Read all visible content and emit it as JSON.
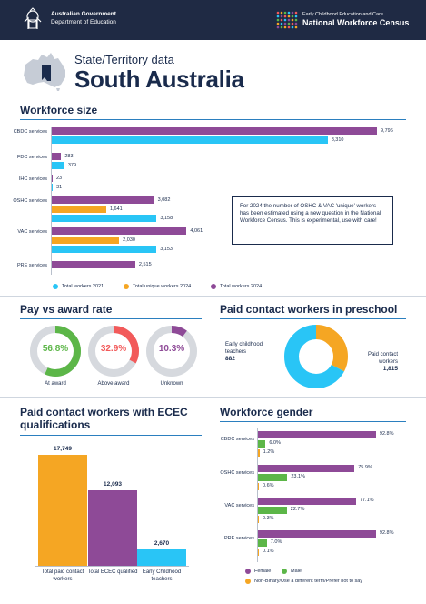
{
  "header": {
    "gov_line1": "Australian Government",
    "gov_line2": "Department of Education",
    "census_line1": "Early Childhood Education and Care",
    "census_line2": "National Workforce Census"
  },
  "page": {
    "subtitle": "State/Territory data",
    "title": "South Australia"
  },
  "workforce_size": {
    "title": "Workforce size",
    "note": "For 2024 the number of OSHC & VAC 'unique' workers has been estimated using a new question in the National Workforce Census. This is experimental, use with care!",
    "legend": [
      "Total workers 2021",
      "Total unique workers 2024",
      "Total workers 2024"
    ],
    "colors": {
      "w2021": "#29c5f6",
      "unique2024": "#f5a623",
      "w2024": "#8e4a97"
    },
    "chart_data": {
      "type": "bar",
      "categories": [
        "CBDC services",
        "FDC services",
        "IHC services",
        "OSHC services",
        "VAC services",
        "PRE services"
      ],
      "series": [
        {
          "name": "Total workers 2024",
          "values": [
            9796,
            283,
            23,
            3082,
            4061,
            2515
          ]
        },
        {
          "name": "Total unique workers 2024",
          "values": [
            null,
            null,
            null,
            1641,
            2030,
            null
          ]
        },
        {
          "name": "Total workers 2021",
          "values": [
            8310,
            379,
            31,
            3158,
            3153,
            null
          ]
        }
      ],
      "labels": {
        "w2024": [
          "9,796",
          "283",
          "23",
          "3,082",
          "4,061",
          "2,515"
        ],
        "unique": [
          "",
          "",
          "",
          "1,641",
          "2,030",
          ""
        ],
        "w2021": [
          "8,310",
          "379",
          "31",
          "3,158",
          "3,153",
          ""
        ]
      },
      "max": 9796
    }
  },
  "pay": {
    "title": "Pay vs award rate",
    "items": [
      {
        "value": "56.8%",
        "pct": 56.8,
        "label": "At award",
        "color": "#5cb648"
      },
      {
        "value": "32.9%",
        "pct": 32.9,
        "label": "Above award",
        "color": "#f25a5a"
      },
      {
        "value": "10.3%",
        "pct": 10.3,
        "label": "Unknown",
        "color": "#8e4a97"
      }
    ]
  },
  "preschool": {
    "title": "Paid contact workers in preschool",
    "ect_label": "Early childhood teachers",
    "ect_value": "882",
    "pcw_label": "Paid contact workers",
    "pcw_value": "1,815",
    "chart_data": {
      "type": "pie",
      "categories": [
        "Early childhood teachers",
        "Paid contact workers"
      ],
      "values": [
        882,
        1815
      ],
      "colors": [
        "#f5a623",
        "#29c5f6"
      ]
    }
  },
  "qualifications": {
    "title": "Paid contact workers with ECEC qualifications",
    "chart_data": {
      "type": "bar",
      "categories": [
        "Total paid contact workers",
        "Total ECEC qualified",
        "Early Childhood teachers"
      ],
      "values": [
        17749,
        12093,
        2670
      ],
      "labels": [
        "17,749",
        "12,093",
        "2,670"
      ],
      "colors": [
        "#f5a623",
        "#8e4a97",
        "#29c5f6"
      ]
    }
  },
  "gender": {
    "title": "Workforce gender",
    "legend": [
      "Female",
      "Male",
      "Non-Binary/Use a different term/Prefer not to say"
    ],
    "colors": {
      "female": "#8e4a97",
      "male": "#5cb648",
      "other": "#f5a623"
    },
    "chart_data": {
      "type": "bar",
      "categories": [
        "CBDC services",
        "OSHC services",
        "VAC services",
        "PRE services"
      ],
      "series": [
        {
          "name": "Female",
          "values": [
            92.8,
            75.9,
            77.1,
            92.8
          ]
        },
        {
          "name": "Male",
          "values": [
            6.0,
            23.1,
            22.7,
            7.0
          ]
        },
        {
          "name": "Non-Binary/Use a different term/Prefer not to say",
          "values": [
            1.2,
            0.6,
            0.3,
            0.1
          ]
        }
      ],
      "labels": {
        "female": [
          "92.8%",
          "75.9%",
          "77.1%",
          "92.8%"
        ],
        "male": [
          "6.0%",
          "23.1%",
          "22.7%",
          "7.0%"
        ],
        "other": [
          "1.2%",
          "0.6%",
          "0.3%",
          "0.1%"
        ]
      }
    }
  }
}
